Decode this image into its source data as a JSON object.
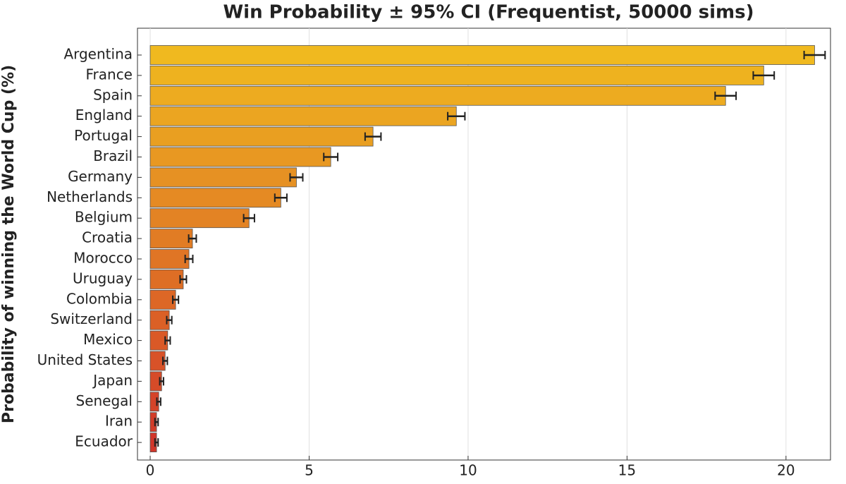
{
  "chart_data": {
    "type": "barh",
    "title": "Win Probability ± 95% CI  (Frequentist, 50000 sims)",
    "y_label": "Probability of winning the World Cup (%)",
    "categories": [
      "Argentina",
      "France",
      "Spain",
      "England",
      "Portugal",
      "Brazil",
      "Germany",
      "Netherlands",
      "Belgium",
      "Croatia",
      "Morocco",
      "Uruguay",
      "Colombia",
      "Switzerland",
      "Mexico",
      "United States",
      "Japan",
      "Senegal",
      "Iran",
      "Ecuador"
    ],
    "series": [
      {
        "values": [
          20.9,
          19.3,
          18.1,
          9.63,
          7.01,
          5.68,
          4.6,
          4.11,
          3.11,
          1.33,
          1.22,
          1.04,
          0.8,
          0.6,
          0.55,
          0.47,
          0.36,
          0.27,
          0.2,
          0.2
        ],
        "errors": [
          0.33,
          0.33,
          0.33,
          0.27,
          0.25,
          0.22,
          0.2,
          0.19,
          0.17,
          0.12,
          0.12,
          0.1,
          0.09,
          0.08,
          0.08,
          0.07,
          0.06,
          0.06,
          0.05,
          0.05
        ],
        "colors": [
          "#f0b91f",
          "#eeb21f",
          "#edab20",
          "#eba521",
          "#e99f21",
          "#e89822",
          "#e69123",
          "#e58a23",
          "#e38324",
          "#e17c24",
          "#e07525",
          "#de6e25",
          "#dd6726",
          "#db6026",
          "#da5927",
          "#d85228",
          "#d64b28",
          "#d54429",
          "#d33d29",
          "#d2362a"
        ]
      }
    ],
    "xlim": [
      -0.4,
      21.4
    ],
    "xticks": [
      0,
      5,
      10,
      15,
      20
    ],
    "grid": true
  }
}
